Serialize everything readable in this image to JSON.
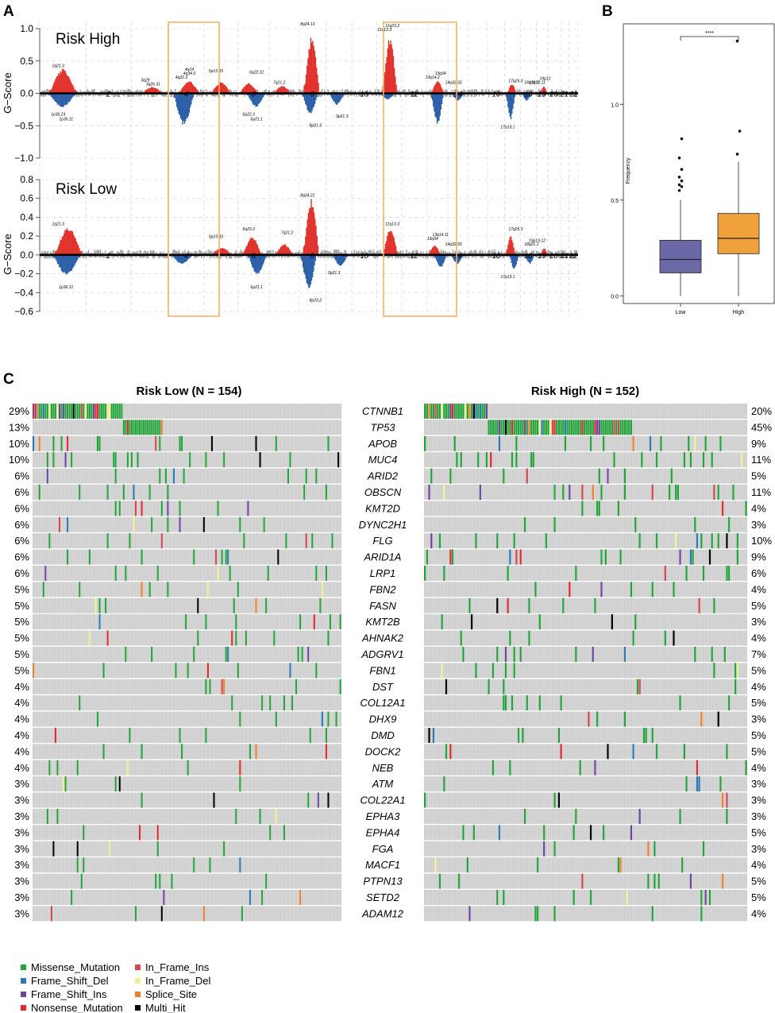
{
  "figure": {
    "panel_labels": [
      "A",
      "B",
      "C"
    ],
    "colors": {
      "amp": "#e0322b",
      "del": "#2b5fa8",
      "background_gscore": "#9b9b9b",
      "highlight_box": "#f4b266",
      "box_low": "#6b68a8",
      "box_high": "#f0a13c",
      "cell_empty": "#cfcfcf"
    }
  },
  "chart_data": [
    {
      "id": "A-high",
      "type": "area",
      "panel": "A",
      "label": "Risk High",
      "ylabel": "G−Score",
      "ylim": [
        -1.0,
        1.0
      ],
      "yticks": [
        "1.0",
        "0.5",
        "0.0",
        "−0.5",
        "−1.0"
      ],
      "ytick_values": [
        1.0,
        0.5,
        0.0,
        -0.5,
        -1.0
      ],
      "chromosomes": [
        "1",
        "2",
        "3",
        "4",
        "5",
        "6",
        "7",
        "8",
        "9",
        "10",
        "11",
        "12",
        "13",
        "14",
        "15",
        "16",
        "17",
        "18",
        "19",
        "20",
        "21",
        "22"
      ],
      "chromosome_display": [
        "2",
        "3",
        "4",
        "5",
        "6",
        "7",
        "8",
        "10",
        "12",
        "13",
        "14",
        "15",
        "16",
        "18",
        "20",
        "21",
        "22"
      ],
      "highlighted_chromosomes": [
        [
          "4",
          "4"
        ],
        [
          "12",
          "15"
        ]
      ],
      "amplification_peaks": [
        {
          "chr": "1",
          "value": 0.38
        },
        {
          "chr": "3",
          "value": 0.1
        },
        {
          "chr": "4",
          "value": 0.2
        },
        {
          "chr": "5",
          "value": 0.18
        },
        {
          "chr": "6",
          "value": 0.16
        },
        {
          "chr": "7",
          "value": 0.12
        },
        {
          "chr": "8",
          "value": 0.9
        },
        {
          "chr": "11",
          "value": 0.88
        },
        {
          "chr": "13",
          "value": 0.2
        },
        {
          "chr": "17",
          "value": 0.15
        },
        {
          "chr": "19",
          "value": 0.12
        }
      ],
      "deletion_peaks": [
        {
          "chr": "1",
          "value": -0.22
        },
        {
          "chr": "4",
          "value": -0.5
        },
        {
          "chr": "6",
          "value": -0.22
        },
        {
          "chr": "8",
          "value": -0.32
        },
        {
          "chr": "9",
          "value": -0.18
        },
        {
          "chr": "11",
          "value": -0.1
        },
        {
          "chr": "13",
          "value": -0.48
        },
        {
          "chr": "14",
          "value": -0.12
        },
        {
          "chr": "17",
          "value": -0.42
        },
        {
          "chr": "18",
          "value": -0.12
        }
      ],
      "annotations": [
        "1q21.3",
        "1p36.11",
        "1p36.23",
        "3q26.31",
        "3q29",
        "4q14",
        "4q22.3",
        "4q34.3",
        "5p15.33",
        "6p21.1",
        "6p22.3",
        "6q22.31",
        "7q21.2",
        "8p21.3",
        "8q24.13",
        "9p21.3",
        "11q13.3",
        "11q23.2",
        "13q14.2",
        "13q34",
        "14q32.33",
        "17q25.3",
        "17p13.1",
        "18q12.3",
        "19q13.11",
        "19p12"
      ]
    },
    {
      "id": "A-low",
      "type": "area",
      "panel": "A",
      "label": "Risk Low",
      "ylabel": "G−Score",
      "ylim": [
        -0.6,
        0.8
      ],
      "yticks": [
        "0.8",
        "0.6",
        "0.4",
        "0.2",
        "0.0",
        "−0.2",
        "−0.4",
        "−0.6"
      ],
      "ytick_values": [
        0.8,
        0.6,
        0.4,
        0.2,
        0.0,
        -0.2,
        -0.4,
        -0.6
      ],
      "chromosomes": [
        "1",
        "2",
        "3",
        "4",
        "5",
        "6",
        "7",
        "8",
        "9",
        "10",
        "11",
        "12",
        "13",
        "14",
        "15",
        "16",
        "17",
        "18",
        "19",
        "20",
        "21",
        "22"
      ],
      "highlighted_chromosomes": [
        [
          "4",
          "4"
        ],
        [
          "12",
          "15"
        ]
      ],
      "amplification_peaks": [
        {
          "chr": "1",
          "value": 0.3
        },
        {
          "chr": "5",
          "value": 0.08
        },
        {
          "chr": "6",
          "value": 0.2
        },
        {
          "chr": "7",
          "value": 0.12
        },
        {
          "chr": "8",
          "value": 0.6
        },
        {
          "chr": "11",
          "value": 0.3
        },
        {
          "chr": "13",
          "value": 0.1
        },
        {
          "chr": "17",
          "value": 0.2
        },
        {
          "chr": "19",
          "value": 0.08
        }
      ],
      "deletion_peaks": [
        {
          "chr": "1",
          "value": -0.22
        },
        {
          "chr": "4",
          "value": -0.1
        },
        {
          "chr": "6",
          "value": -0.22
        },
        {
          "chr": "8",
          "value": -0.36
        },
        {
          "chr": "9",
          "value": -0.12
        },
        {
          "chr": "13",
          "value": -0.14
        },
        {
          "chr": "14",
          "value": -0.1
        },
        {
          "chr": "17",
          "value": -0.16
        },
        {
          "chr": "18",
          "value": -0.1
        }
      ],
      "annotations": [
        "1q21.3",
        "1p36.31",
        "5p15.33",
        "6p21.1",
        "6q23.3",
        "7q21.2",
        "8q24.21",
        "8p23.2",
        "9p21.3",
        "11q13.3",
        "13q34",
        "13q14.11",
        "14q32.33",
        "17q25.3",
        "17p13.1",
        "18q21.1",
        "19p13.12"
      ]
    },
    {
      "id": "B",
      "type": "box",
      "panel": "B",
      "categories": [
        "Low",
        "High"
      ],
      "ylabel": "Frequency",
      "ylim": [
        -0.04,
        1.42
      ],
      "yticks": [
        "0.0",
        "0.5",
        "1.0"
      ],
      "ytick_values": [
        0.0,
        0.5,
        1.0
      ],
      "significance": "****",
      "boxes": [
        {
          "name": "Low",
          "min": 0.0,
          "q1": 0.12,
          "median": 0.19,
          "q3": 0.29,
          "max": 0.5,
          "outliers": [
            0.55,
            0.57,
            0.58,
            0.6,
            0.62,
            0.66,
            0.72,
            0.82
          ]
        },
        {
          "name": "High",
          "min": 0.0,
          "q1": 0.22,
          "median": 0.3,
          "q3": 0.43,
          "max": 0.7,
          "outliers": [
            0.74,
            0.86,
            1.33
          ]
        }
      ]
    },
    {
      "id": "C",
      "type": "heatmap",
      "panel": "C",
      "low_title": "Risk Low (N = 154)",
      "high_title": "Risk High (N = 152)",
      "genes": [
        "CTNNB1",
        "TP53",
        "APOB",
        "MUC4",
        "ARID2",
        "OBSCN",
        "KMT2D",
        "DYNC2H1",
        "FLG",
        "ARID1A",
        "LRP1",
        "FBN2",
        "FASN",
        "KMT2B",
        "AHNAK2",
        "ADGRV1",
        "FBN1",
        "DST",
        "COL12A1",
        "DHX9",
        "DMD",
        "DOCK2",
        "NEB",
        "ATM",
        "COL22A1",
        "EPHA3",
        "EPHA4",
        "FGA",
        "MACF1",
        "PTPN13",
        "SETD2",
        "ADAM12"
      ],
      "low_pct": [
        "29%",
        "13%",
        "10%",
        "10%",
        "6%",
        "6%",
        "6%",
        "6%",
        "6%",
        "6%",
        "6%",
        "5%",
        "5%",
        "5%",
        "5%",
        "5%",
        "5%",
        "4%",
        "4%",
        "4%",
        "4%",
        "4%",
        "4%",
        "3%",
        "3%",
        "3%",
        "3%",
        "3%",
        "3%",
        "3%",
        "3%",
        "3%"
      ],
      "high_pct": [
        "20%",
        "45%",
        "9%",
        "11%",
        "5%",
        "11%",
        "4%",
        "3%",
        "10%",
        "9%",
        "6%",
        "4%",
        "5%",
        "3%",
        "4%",
        "7%",
        "5%",
        "4%",
        "5%",
        "3%",
        "5%",
        "5%",
        "4%",
        "3%",
        "3%",
        "3%",
        "5%",
        "3%",
        "4%",
        "5%",
        "5%",
        "4%"
      ],
      "legend": [
        {
          "label": "Missense_Mutation",
          "color": "#22a33a"
        },
        {
          "label": "In_Frame_Ins",
          "color": "#d1464f"
        },
        {
          "label": "Frame_Shift_Del",
          "color": "#2a78b8"
        },
        {
          "label": "In_Frame_Del",
          "color": "#f2ef93"
        },
        {
          "label": "Frame_Shift_Ins",
          "color": "#6b45a0"
        },
        {
          "label": "Splice_Site",
          "color": "#f07f2a"
        },
        {
          "label": "Nonsense_Mutation",
          "color": "#e0282c"
        },
        {
          "label": "Multi_Hit",
          "color": "#000000"
        }
      ]
    }
  ]
}
